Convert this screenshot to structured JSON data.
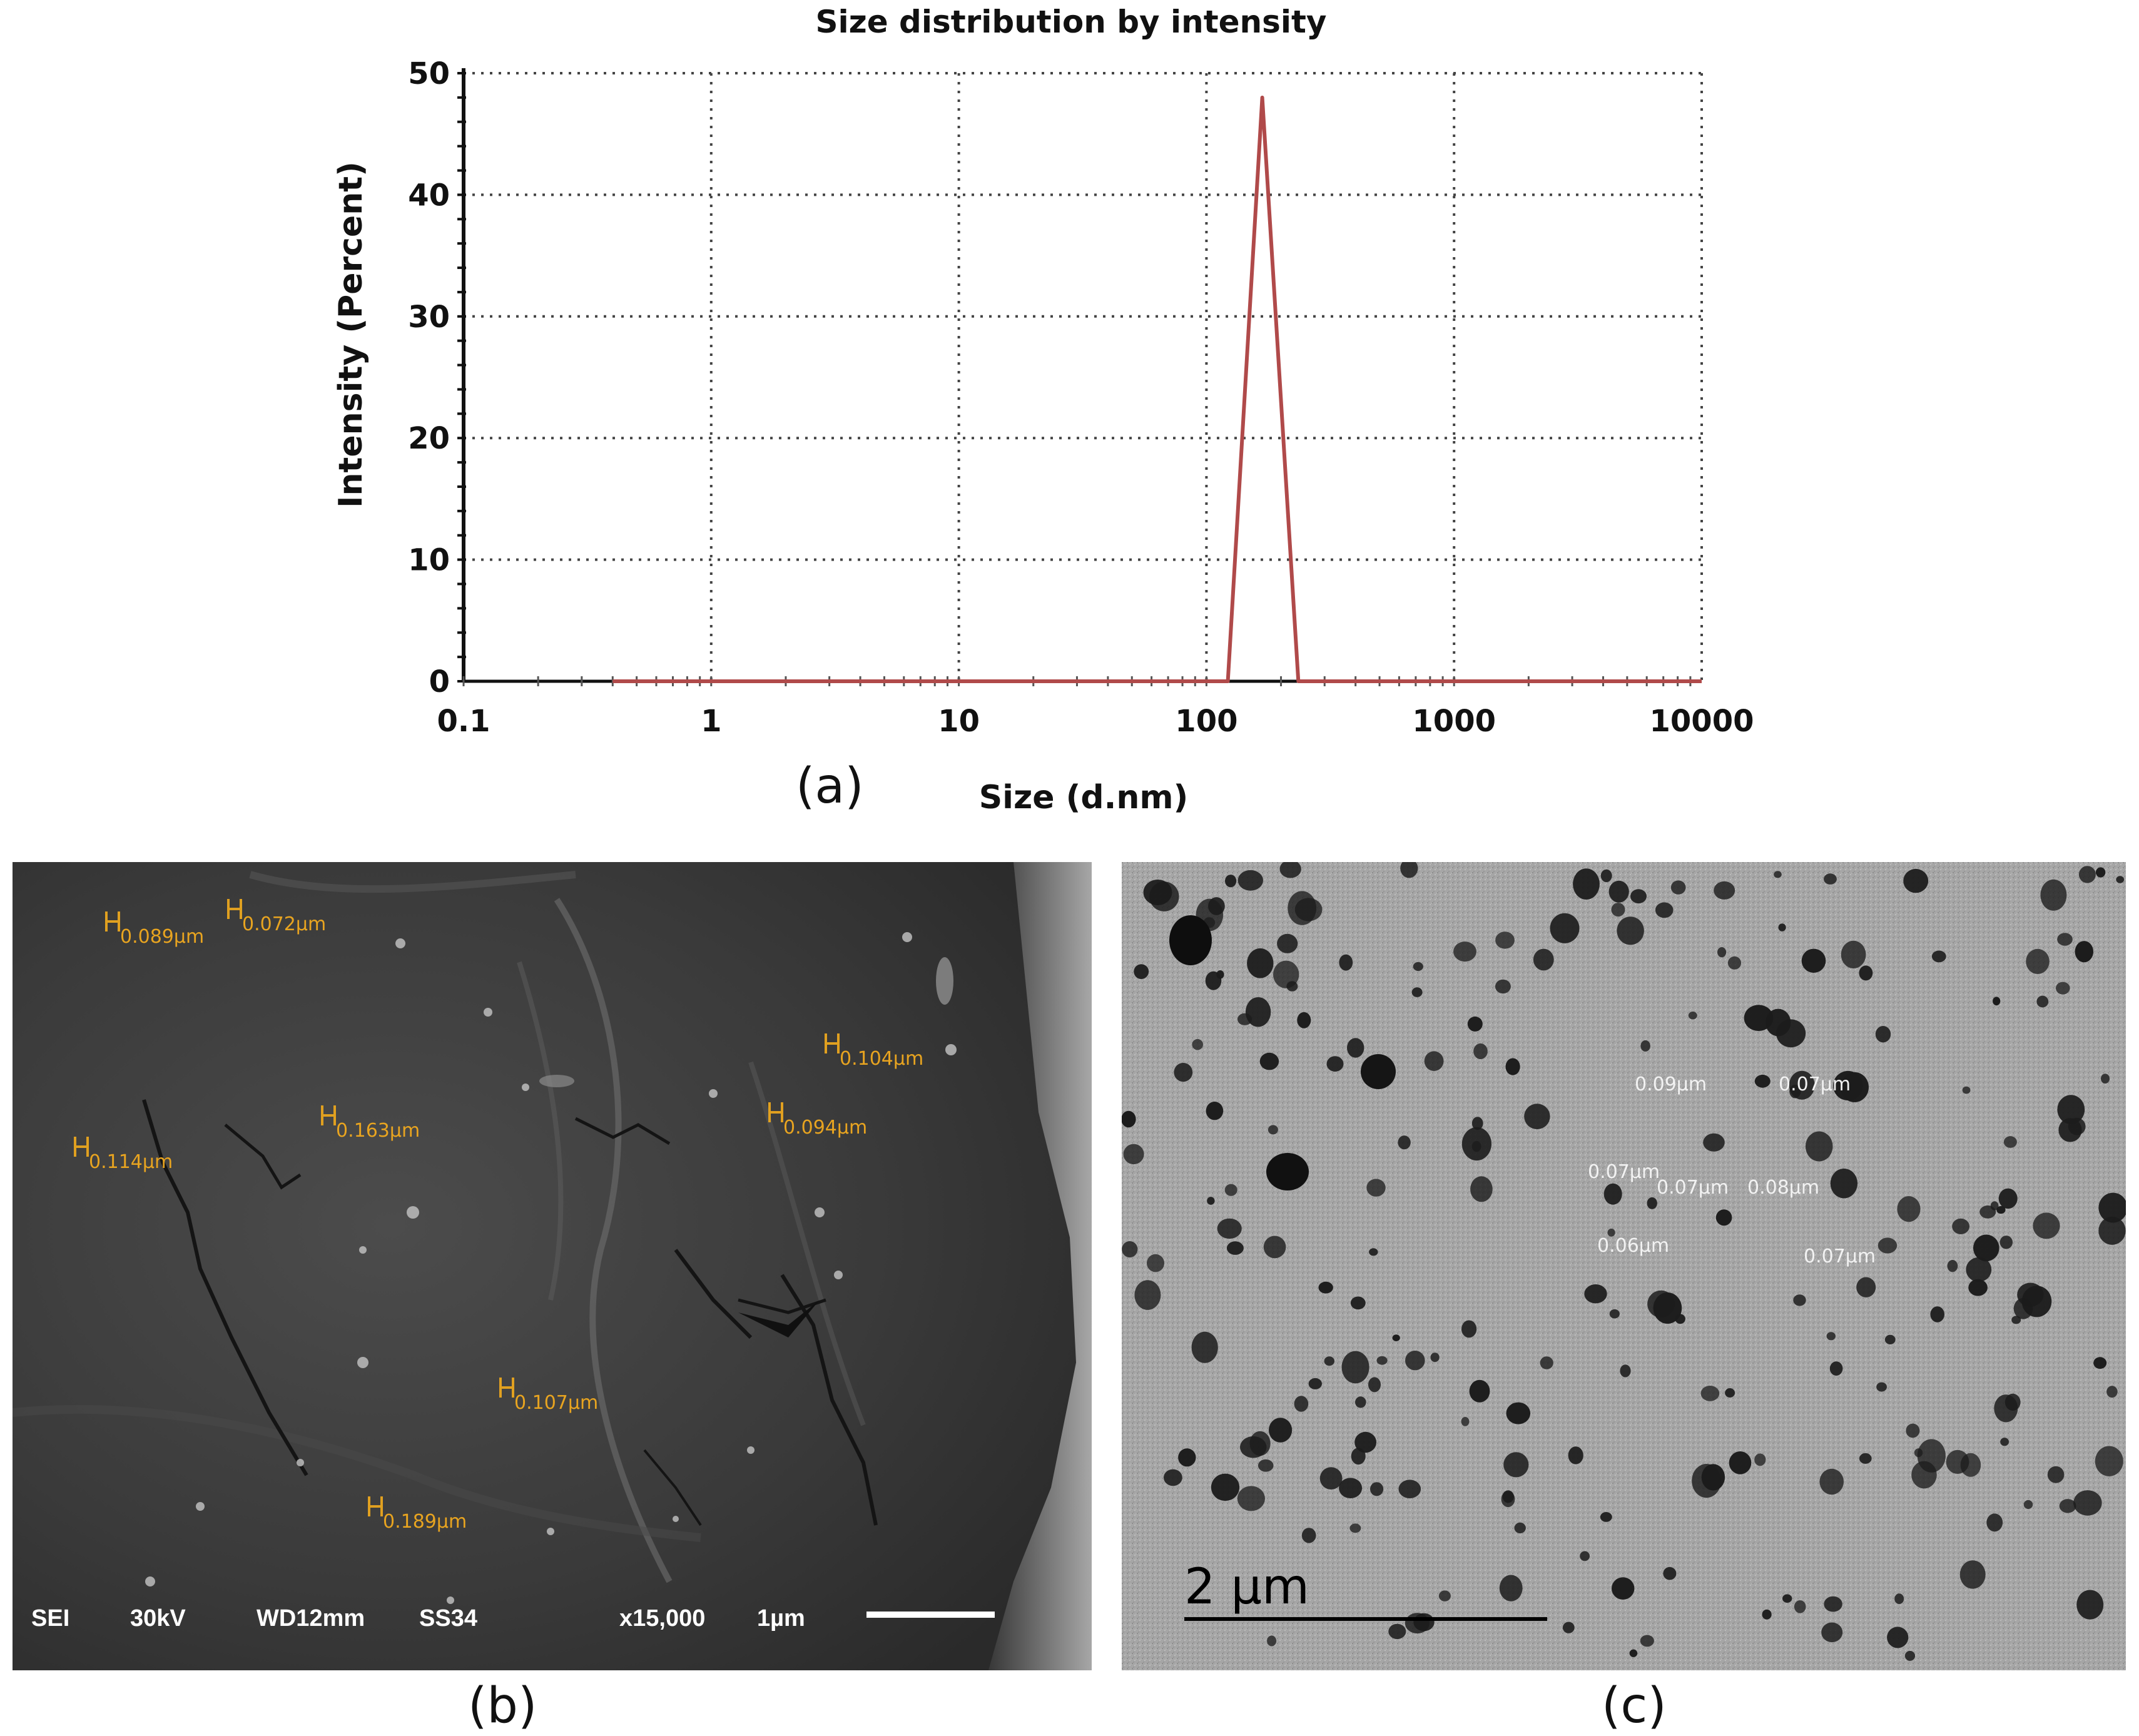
{
  "panels": {
    "a": "(a)",
    "b": "(b)",
    "c": "(c)"
  },
  "chart_data": {
    "type": "line",
    "title": "Size distribution by intensity",
    "xlabel": "Size (d.nm)",
    "ylabel": "Intensity (Percent)",
    "xscale": "log",
    "xlim": [
      0.1,
      10000
    ],
    "ylim": [
      0,
      50
    ],
    "xticks": [
      0.1,
      1,
      10,
      100,
      1000,
      10000
    ],
    "xtick_labels": [
      "0.1",
      "1",
      "10",
      "100",
      "1000",
      "10000"
    ],
    "yticks": [
      0,
      10,
      20,
      30,
      40,
      50
    ],
    "ytick_labels": [
      "0",
      "10",
      "20",
      "30",
      "40",
      "50"
    ],
    "grid": true,
    "color": "#b04a4a",
    "series": [
      {
        "x": [
          0.4,
          100,
          122,
          168,
          235,
          300,
          1000,
          10000
        ],
        "y": [
          0,
          0,
          0,
          48,
          0,
          0,
          0,
          0
        ]
      }
    ]
  },
  "sem": {
    "measurements": [
      "0.089µm",
      "0.072µm",
      "0.104µm",
      "0.163µm",
      "0.094µm",
      "0.114µm",
      "0.107µm",
      "0.189µm"
    ],
    "info": {
      "mode": "SEI",
      "voltage": "30kV",
      "wd": "WD12mm",
      "ss": "SS34",
      "mag": "x15,000",
      "scale": "1µm"
    }
  },
  "tem": {
    "measurements": [
      "0.09µm",
      "0.07µm",
      "0.07µm",
      "0.07µm",
      "0.08µm",
      "0.06µm",
      "0.07µm"
    ],
    "scale": "2 µm"
  }
}
